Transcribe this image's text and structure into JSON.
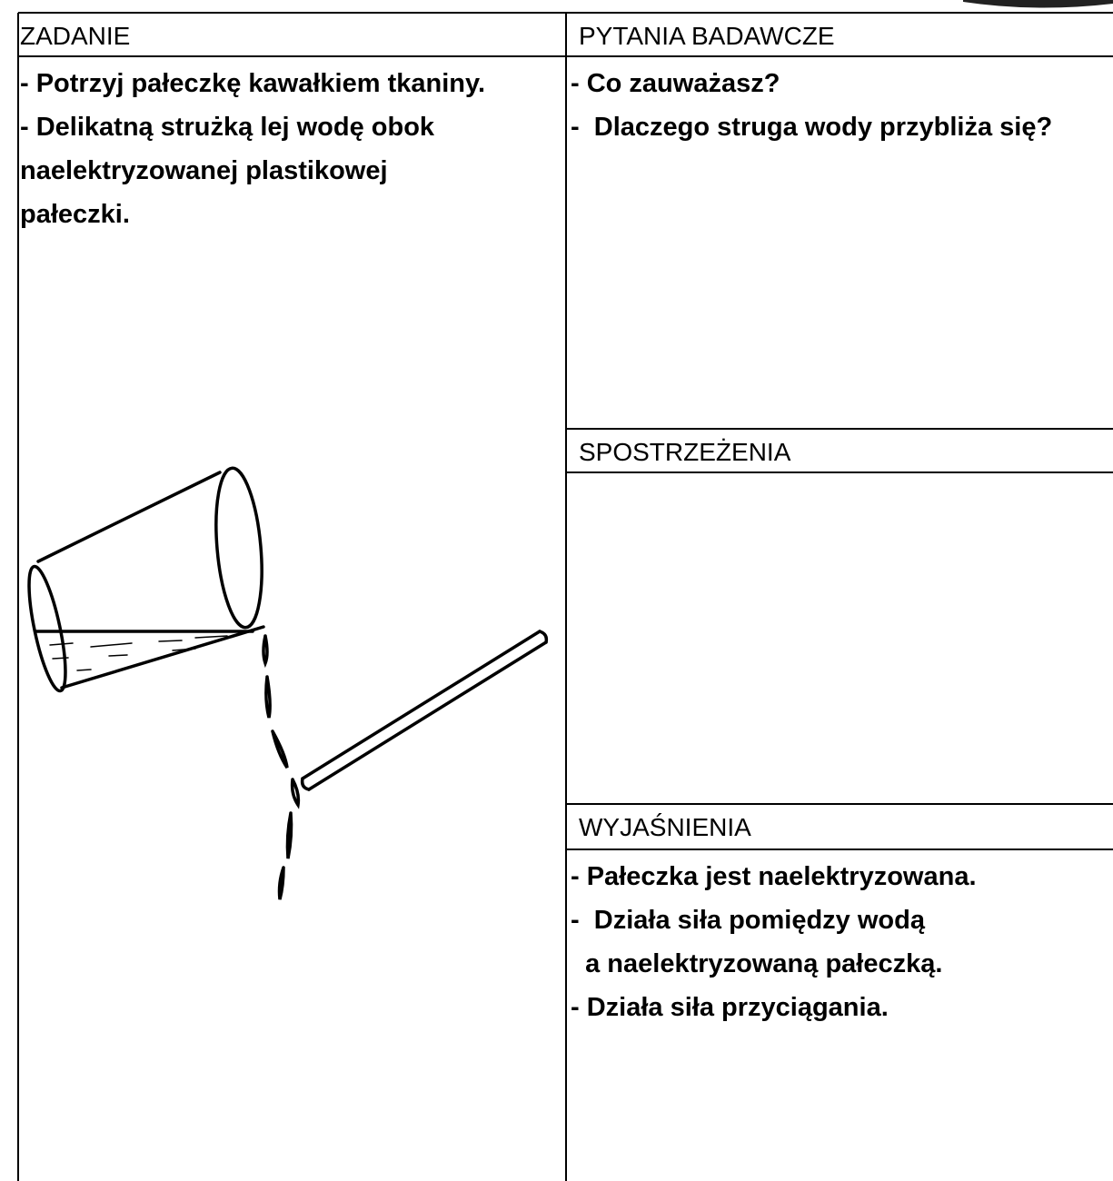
{
  "task": {
    "header": "ZADANIE",
    "lines": [
      "- Potrzyj pałeczkę kawałkiem tkaniny.",
      "- Delikatną strużką lej wodę obok",
      "naelektryzowanej plastikowej",
      "pałeczki."
    ]
  },
  "questions": {
    "header": "PYTANIA BADAWCZE",
    "lines": [
      "- Co zauważasz?",
      "-  Dlaczego struga wody przybliża się?"
    ]
  },
  "observations": {
    "header": "SPOSTRZEŻENIA"
  },
  "explanations": {
    "header": "WYJAŚNIENIA",
    "lines": [
      "- Pałeczka jest naelektryzowana.",
      "-  Działa siła pomiędzy wodą",
      "  a naelektryzowaną pałeczką.",
      "- Działa siła przyciągania."
    ]
  }
}
